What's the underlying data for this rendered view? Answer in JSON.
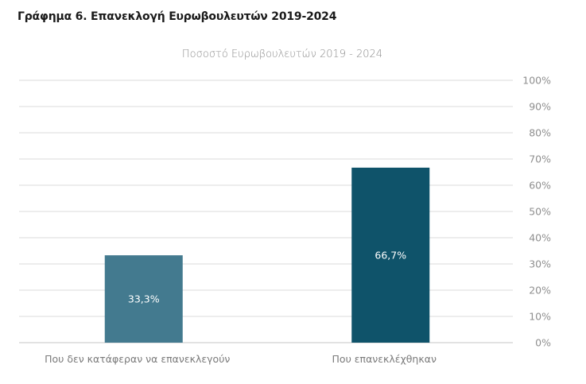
{
  "chart_data": {
    "type": "bar",
    "title": "Γράφημα 6. Επανεκλογή Ευρωβουλευτών 2019-2024",
    "subtitle": "Ποσοστό Ευρωβουλευτών 2019 - 2024",
    "categories": [
      "Που δεν κατάφεραν να επανεκλεγούν",
      "Που επανεκλέχθηκαν"
    ],
    "values": [
      33.3,
      66.7
    ],
    "data_labels": [
      "33,3%",
      "66,7%"
    ],
    "colors": [
      "#437A8F",
      "#0F536A"
    ],
    "ylim": [
      0,
      100
    ],
    "yticks": [
      "0%",
      "10%",
      "20%",
      "30%",
      "40%",
      "50%",
      "60%",
      "70%",
      "80%",
      "90%",
      "100%"
    ],
    "y_axis_side": "right",
    "grid": true,
    "xlabel": "",
    "ylabel": ""
  }
}
